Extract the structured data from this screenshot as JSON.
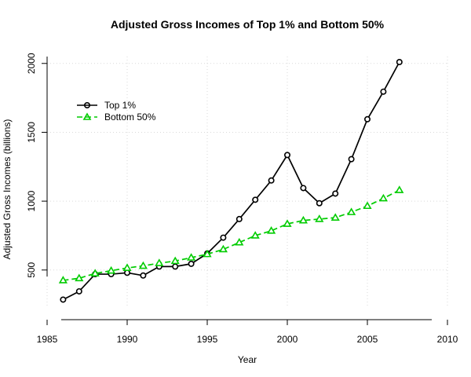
{
  "chart_data": {
    "type": "line",
    "title": "Adjusted Gross Incomes of Top 1% and Bottom 50%",
    "xlabel": "Year",
    "ylabel": "Adjusted Gross Incomes (billions)",
    "xlim": [
      1985,
      2010
    ],
    "ylim": [
      225,
      2050
    ],
    "x_ticks": [
      1985,
      1990,
      1995,
      2000,
      2005,
      2010
    ],
    "y_ticks": [
      500,
      1000,
      1500,
      2000
    ],
    "grid": true,
    "legend_position": "top-left",
    "x": [
      1986,
      1987,
      1988,
      1989,
      1990,
      1991,
      1992,
      1993,
      1994,
      1995,
      1996,
      1997,
      1998,
      1999,
      2000,
      2001,
      2002,
      2003,
      2004,
      2005,
      2006,
      2007
    ],
    "series": [
      {
        "name": "Top 1%",
        "color": "#000000",
        "marker": "circle",
        "line_style": "solid",
        "values": [
          285,
          345,
          470,
          470,
          480,
          460,
          525,
          525,
          545,
          620,
          735,
          870,
          1010,
          1150,
          1335,
          1095,
          985,
          1055,
          1305,
          1595,
          1795,
          2010
        ]
      },
      {
        "name": "Bottom 50%",
        "color": "#00cc00",
        "marker": "triangle",
        "line_style": "dashed",
        "values": [
          425,
          440,
          475,
          495,
          515,
          530,
          550,
          565,
          590,
          615,
          650,
          700,
          750,
          785,
          835,
          860,
          870,
          880,
          920,
          965,
          1020,
          1080
        ]
      }
    ]
  }
}
